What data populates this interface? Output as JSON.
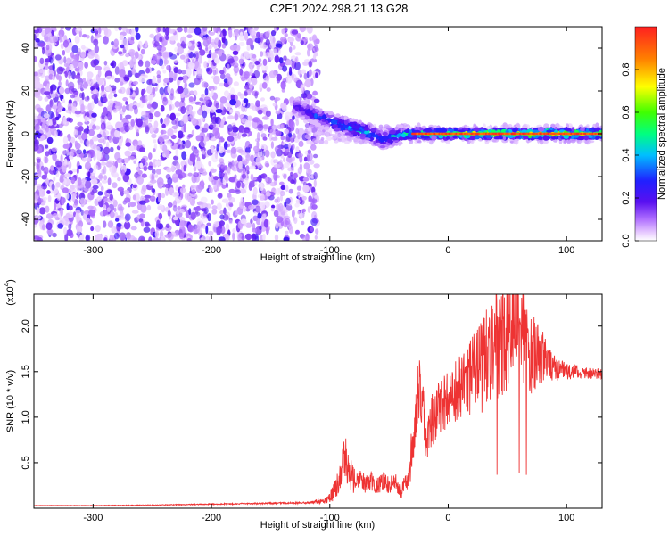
{
  "title": "C2E1.2024.298.21.13.G28",
  "colors": {
    "spectrogram_low": "#7a2ff0",
    "snr_line": "#ee3333",
    "colorbar_stops": [
      "#ffffff",
      "#e6c8ff",
      "#b070ff",
      "#5a10f0",
      "#2020ff",
      "#00bfff",
      "#00ff80",
      "#40ff00",
      "#ffff00",
      "#ff8000",
      "#ff2020"
    ]
  },
  "chart_data": [
    {
      "type": "heatmap",
      "xlabel": "Height of straight line (km)",
      "ylabel": "Frequency (Hz)",
      "xlim": [
        -350,
        130
      ],
      "ylim": [
        -50,
        50
      ],
      "xticks": [
        -300,
        -200,
        -100,
        0,
        100
      ],
      "xtick_labels": [
        "-300",
        "-200",
        "-100",
        "0",
        "100"
      ],
      "yticks": [
        -40,
        -20,
        0,
        20,
        40
      ],
      "ytick_labels": [
        "-40",
        "-20",
        "0",
        "20",
        "40"
      ],
      "noise_region_km": [
        -350,
        -115
      ],
      "signal_track": {
        "x": [
          -130,
          -110,
          -90,
          -70,
          -55,
          -45,
          -35,
          -25,
          -10,
          0,
          20,
          40,
          60,
          80,
          100,
          130
        ],
        "y": [
          13,
          8,
          4,
          1,
          -3,
          -1,
          0,
          0,
          0,
          0,
          0,
          0,
          0,
          0,
          0,
          0
        ],
        "amplitude": [
          0.25,
          0.35,
          0.45,
          0.5,
          0.4,
          0.5,
          0.6,
          0.75,
          0.85,
          0.9,
          0.92,
          0.95,
          0.95,
          0.95,
          0.93,
          0.92
        ]
      },
      "colorbar": {
        "label": "Normalized spectral amplitude",
        "range": [
          0,
          1
        ],
        "ticks": [
          0.0,
          0.2,
          0.4,
          0.6,
          0.8
        ],
        "tick_labels": [
          "0.0",
          "0.2",
          "0.4",
          "0.6",
          "0.8"
        ]
      }
    },
    {
      "type": "line",
      "xlabel": "Height of straight line (km)",
      "ylabel": "SNR (10 * v/v)",
      "y_multiplier_label": "(x10",
      "y_multiplier_exp": "4",
      "y_multiplier_close": ")",
      "xlim": [
        -350,
        130
      ],
      "ylim": [
        0,
        23500
      ],
      "xticks": [
        -300,
        -200,
        -100,
        0,
        100
      ],
      "xtick_labels": [
        "-300",
        "-200",
        "-100",
        "0",
        "100"
      ],
      "yticks": [
        5000,
        10000,
        15000,
        20000
      ],
      "ytick_labels": [
        "0.5",
        "1.0",
        "1.5",
        "2.0"
      ],
      "series": [
        {
          "x": [
            -350,
            -300,
            -250,
            -200,
            -150,
            -120,
            -105,
            -98,
            -92,
            -88,
            -85,
            -80,
            -75,
            -70,
            -65,
            -60,
            -55,
            -50,
            -45,
            -40,
            -38,
            -35,
            -32,
            -30,
            -27,
            -24,
            -20,
            -18,
            -15,
            -10,
            -5,
            0,
            5,
            10,
            15,
            20,
            25,
            30,
            35,
            40,
            45,
            50,
            55,
            60,
            65,
            70,
            75,
            80,
            85,
            90,
            100,
            110,
            120,
            130
          ],
          "values": [
            300,
            300,
            350,
            450,
            550,
            600,
            800,
            1500,
            3000,
            6500,
            4500,
            3000,
            3500,
            2500,
            3000,
            2500,
            3000,
            2500,
            3000,
            1500,
            2500,
            3500,
            5000,
            7000,
            11000,
            14000,
            10000,
            6000,
            9500,
            10500,
            11500,
            12000,
            12500,
            13000,
            13500,
            14500,
            15000,
            16000,
            17000,
            18500,
            18000,
            19000,
            20000,
            19500,
            18500,
            17500,
            17000,
            16500,
            16000,
            15500,
            15000,
            15000,
            14800,
            14800
          ],
          "noise_amp": [
            20,
            30,
            40,
            60,
            80,
            100,
            300,
            800,
            1500,
            2500,
            2000,
            1500,
            1200,
            1000,
            1100,
            1000,
            1000,
            900,
            1000,
            700,
            900,
            1500,
            2500,
            3000,
            3500,
            3500,
            3000,
            2500,
            3000,
            3000,
            3200,
            3500,
            3500,
            3800,
            4000,
            4500,
            5000,
            5500,
            6000,
            6500,
            6500,
            6500,
            6500,
            6000,
            5500,
            5000,
            4000,
            3000,
            2000,
            1500,
            900,
            700,
            600,
            600
          ]
        }
      ]
    }
  ]
}
